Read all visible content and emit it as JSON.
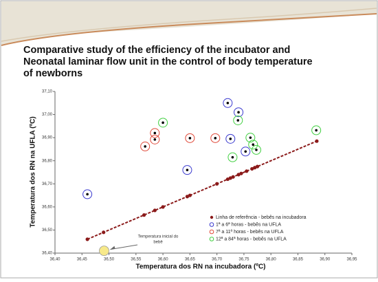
{
  "chart_data": {
    "type": "scatter",
    "title": [
      "Comparative study of the efficiency of the  incubator and",
      "Neonatal laminar flow unit in the control of body temperature",
      "of newborns"
    ],
    "x_label": "Temperatura dos RN na incubadora (ºC)",
    "y_label": "Temperatura dos RN na UFLA (ºC)",
    "xlim": [
      36.4,
      36.95
    ],
    "ylim": [
      36.4,
      37.1
    ],
    "xticks": [
      {
        "value": 36.4,
        "label": "36,40"
      },
      {
        "value": 36.45,
        "label": "36,45"
      },
      {
        "value": 36.5,
        "label": "36,50"
      },
      {
        "value": 36.55,
        "label": "36,55"
      },
      {
        "value": 36.6,
        "label": "36,60"
      },
      {
        "value": 36.65,
        "label": "36,65"
      },
      {
        "value": 36.7,
        "label": "36,70"
      },
      {
        "value": 36.75,
        "label": "36,75"
      },
      {
        "value": 36.8,
        "label": "36,80"
      },
      {
        "value": 36.85,
        "label": "36,85"
      },
      {
        "value": 36.9,
        "label": "36,90"
      },
      {
        "value": 36.95,
        "label": "36,95"
      }
    ],
    "yticks": [
      {
        "value": 36.4,
        "label": "36,40"
      },
      {
        "value": 36.5,
        "label": "36,50"
      },
      {
        "value": 36.6,
        "label": "36,60"
      },
      {
        "value": 36.7,
        "label": "36,70"
      },
      {
        "value": 36.8,
        "label": "36,80"
      },
      {
        "value": 36.9,
        "label": "36,90"
      },
      {
        "value": 37.0,
        "label": "37,00"
      },
      {
        "value": 37.1,
        "label": "37,10"
      }
    ],
    "series": [
      {
        "name": "Linha de referência - bebês na incubadora",
        "color": "#8b1a1a",
        "marker": "dot",
        "x": [
          36.46,
          36.49,
          36.565,
          36.585,
          36.6,
          36.645,
          36.65,
          36.7,
          36.72,
          36.725,
          36.73,
          36.74,
          36.745,
          36.755,
          36.765,
          36.77,
          36.775,
          36.885
        ],
        "y": [
          36.46,
          36.49,
          36.565,
          36.585,
          36.6,
          36.645,
          36.65,
          36.7,
          36.72,
          36.725,
          36.73,
          36.74,
          36.745,
          36.755,
          36.765,
          36.77,
          36.775,
          36.885
        ]
      },
      {
        "name": "1ª a 6ª horas - bebês na UFLA",
        "color": "#3a3acf",
        "marker": "circle",
        "x": [
          36.46,
          36.645,
          36.72,
          36.74,
          36.725,
          36.753
        ],
        "y": [
          36.655,
          36.76,
          37.05,
          37.01,
          36.895,
          36.84
        ]
      },
      {
        "name": "7ª a 11ª horas - bebês na UFLA",
        "color": "#e04a3a",
        "marker": "circle",
        "x": [
          36.567,
          36.585,
          36.585,
          36.65,
          36.697
        ],
        "y": [
          36.862,
          36.892,
          36.92,
          36.898,
          36.898
        ]
      },
      {
        "name": "12ª a 84ª horas - bebês na UFLA",
        "color": "#3fcf3f",
        "marker": "circle",
        "x": [
          36.6,
          36.739,
          36.729,
          36.762,
          36.767,
          36.773,
          36.884
        ],
        "y": [
          36.965,
          36.975,
          36.815,
          36.9,
          36.87,
          36.847,
          36.932
        ]
      }
    ],
    "annotation": {
      "text": [
        "Temperatura  inicial do",
        "bebê"
      ],
      "x": 36.491,
      "y": 36.41,
      "color": "#f7e98a"
    }
  }
}
